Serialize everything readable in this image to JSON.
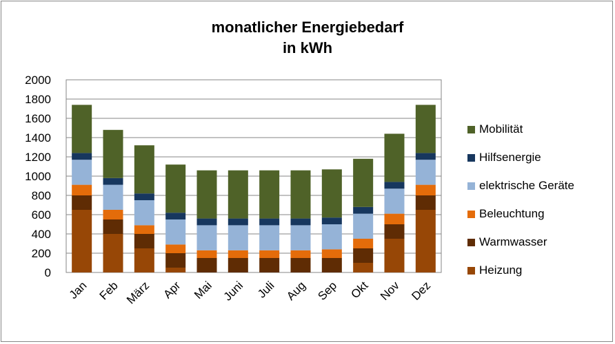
{
  "chart_data": {
    "type": "bar",
    "stacked": true,
    "title": "monatlicher Energiebedarf",
    "subtitle": "in kWh",
    "xlabel": "",
    "ylabel": "",
    "ylim": [
      0,
      2000
    ],
    "yticks": [
      0,
      200,
      400,
      600,
      800,
      1000,
      1200,
      1400,
      1600,
      1800,
      2000
    ],
    "grid": true,
    "legend_position": "right",
    "categories": [
      "Jan",
      "Feb",
      "März",
      "Apr",
      "Mai",
      "Juni",
      "Juli",
      "Aug",
      "Sep",
      "Okt",
      "Nov",
      "Dez"
    ],
    "series": [
      {
        "name": "Heizung",
        "color": "#974706",
        "values": [
          650,
          400,
          250,
          50,
          0,
          0,
          0,
          0,
          0,
          100,
          350,
          650
        ]
      },
      {
        "name": "Warmwasser",
        "color": "#5F2C04",
        "values": [
          150,
          150,
          150,
          150,
          150,
          150,
          150,
          150,
          150,
          150,
          150,
          150
        ]
      },
      {
        "name": "Beleuchtung",
        "color": "#E46C0A",
        "values": [
          110,
          100,
          90,
          90,
          80,
          80,
          80,
          80,
          90,
          100,
          110,
          110
        ]
      },
      {
        "name": "elektrische Geräte",
        "color": "#95B3D7",
        "values": [
          260,
          260,
          260,
          260,
          260,
          260,
          260,
          260,
          260,
          260,
          260,
          260
        ]
      },
      {
        "name": "Hilfsenergie",
        "color": "#17375E",
        "values": [
          70,
          70,
          70,
          70,
          70,
          70,
          70,
          70,
          70,
          70,
          70,
          70
        ]
      },
      {
        "name": "Mobilität",
        "color": "#4F6228",
        "values": [
          500,
          500,
          500,
          500,
          500,
          500,
          500,
          500,
          500,
          500,
          500,
          500
        ]
      }
    ]
  }
}
